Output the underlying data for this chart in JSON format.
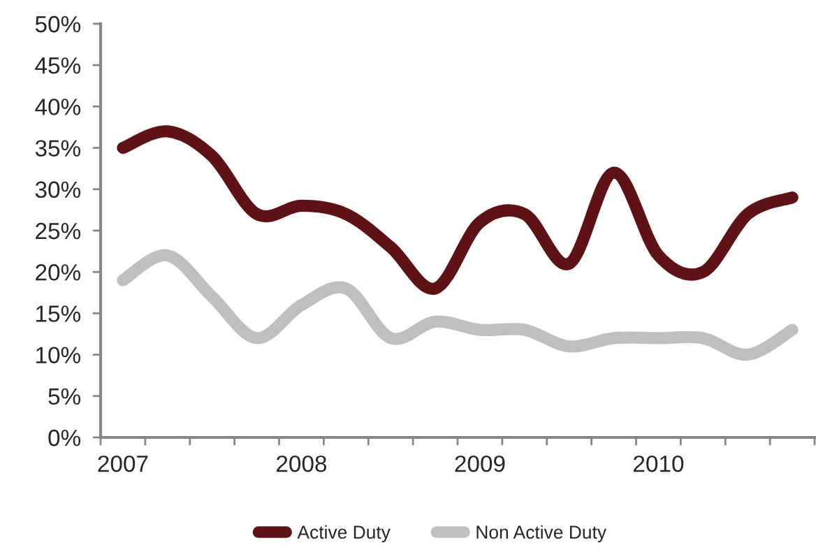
{
  "chart_data": {
    "type": "line",
    "categories": [
      "2007",
      null,
      null,
      null,
      "2008",
      null,
      null,
      null,
      "2009",
      null,
      null,
      null,
      "2010",
      null,
      null,
      null
    ],
    "series": [
      {
        "name": "Active Duty",
        "color": "#5e1216",
        "values": [
          35,
          37,
          34,
          27,
          28,
          27,
          23,
          18,
          26,
          27,
          21,
          32,
          22,
          20,
          27,
          29
        ]
      },
      {
        "name": "Non Active Duty",
        "color": "#bfbfbf",
        "values": [
          19,
          22,
          17,
          12,
          16,
          18,
          12,
          14,
          13,
          13,
          11,
          12,
          12,
          12,
          10,
          13
        ]
      }
    ],
    "ylim": [
      0,
      50
    ],
    "yticks": [
      {
        "value": 0,
        "label": "0%"
      },
      {
        "value": 5,
        "label": "5%"
      },
      {
        "value": 10,
        "label": "10%"
      },
      {
        "value": 15,
        "label": "15%"
      },
      {
        "value": 20,
        "label": "20%"
      },
      {
        "value": 25,
        "label": "25%"
      },
      {
        "value": 30,
        "label": "30%"
      },
      {
        "value": 35,
        "label": "35%"
      },
      {
        "value": 40,
        "label": "40%"
      },
      {
        "value": 45,
        "label": "45%"
      },
      {
        "value": 50,
        "label": "50%"
      }
    ],
    "legend": "bottom",
    "line_style": "solid"
  }
}
